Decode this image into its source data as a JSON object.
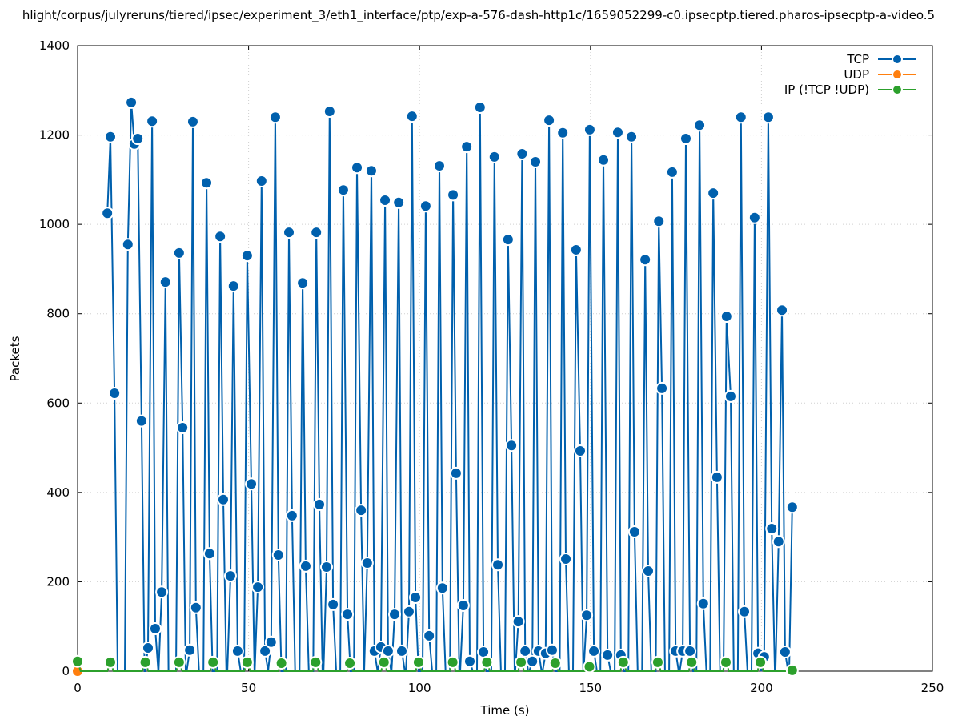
{
  "chart_data": {
    "type": "line",
    "title": "hlight/corpus/julyreruns/tiered/ipsec/experiment_3/eth1_interface/ptp/exp-a-576-dash-http1c/1659052299-c0.ipsecptp.tiered.pharos-ipsecptp-a-video.5",
    "xlabel": "Time (s)",
    "ylabel": "Packets",
    "xlim": [
      0,
      250
    ],
    "ylim": [
      0,
      1400
    ],
    "xticks": [
      0,
      50,
      100,
      150,
      200,
      250
    ],
    "yticks": [
      0,
      200,
      400,
      600,
      800,
      1000,
      1200,
      1400
    ],
    "grid": true,
    "legend_position": "top-right",
    "series": [
      {
        "name": "TCP",
        "color": "#0060ad",
        "x": [
          8.7,
          9.6,
          10.8,
          14.7,
          15.7,
          16.6,
          17.6,
          18.7,
          20.6,
          21.8,
          22.7,
          24.6,
          25.7,
          29.7,
          30.7,
          32.8,
          33.7,
          34.6,
          37.7,
          38.6,
          41.7,
          42.6,
          44.7,
          45.6,
          46.8,
          49.6,
          50.8,
          52.7,
          53.8,
          54.8,
          56.6,
          57.8,
          58.7,
          61.8,
          62.7,
          65.8,
          66.7,
          69.8,
          70.7,
          72.8,
          73.7,
          74.7,
          77.7,
          78.9,
          81.7,
          82.9,
          84.7,
          85.9,
          86.8,
          88.7,
          89.9,
          90.8,
          92.7,
          93.9,
          94.8,
          96.9,
          97.8,
          98.8,
          101.8,
          102.8,
          105.8,
          106.7,
          109.8,
          110.7,
          112.8,
          113.8,
          114.7,
          117.7,
          118.7,
          121.9,
          122.9,
          125.9,
          126.9,
          128.9,
          130.0,
          130.9,
          133.0,
          133.9,
          134.8,
          136.9,
          137.9,
          138.8,
          141.9,
          142.8,
          145.8,
          147.0,
          148.9,
          149.8,
          151.0,
          153.8,
          155.0,
          158.0,
          158.9,
          162.0,
          162.9,
          166.0,
          166.9,
          170.0,
          170.9,
          173.9,
          174.9,
          177.0,
          177.9,
          179.1,
          181.9,
          183.0,
          185.9,
          187.0,
          189.8,
          191.0,
          194.0,
          195.0,
          198.0,
          199.0,
          200.8,
          202.0,
          203.0,
          205.0,
          206.0,
          206.9,
          209.0
        ],
        "y": [
          1025,
          1196,
          622,
          955,
          1273,
          1180,
          1192,
          560,
          52,
          1231,
          95,
          177,
          871,
          936,
          545,
          47,
          1230,
          142,
          1093,
          263,
          973,
          384,
          213,
          862,
          45,
          930,
          419,
          188,
          1097,
          45,
          65,
          1240,
          260,
          982,
          348,
          869,
          235,
          982,
          373,
          233,
          1253,
          149,
          1077,
          127,
          1127,
          360,
          242,
          1120,
          45,
          54,
          1054,
          45,
          127,
          1049,
          45,
          133,
          1242,
          165,
          1041,
          79,
          1131,
          186,
          1066,
          443,
          147,
          1174,
          22,
          1262,
          43,
          1151,
          238,
          966,
          505,
          111,
          1158,
          45,
          22,
          1140,
          45,
          40,
          1233,
          47,
          1205,
          251,
          943,
          493,
          125,
          1212,
          45,
          1144,
          36,
          1206,
          36,
          1196,
          312,
          921,
          224,
          1007,
          633,
          1117,
          45,
          45,
          1192,
          45,
          1222,
          151,
          1070,
          434,
          794,
          615,
          1240,
          133,
          1015,
          40,
          32,
          1240,
          319,
          290,
          808,
          43,
          367
        ]
      },
      {
        "name": "UDP",
        "color": "#ff7f0e",
        "x": [
          0
        ],
        "y": [
          0
        ]
      },
      {
        "name": "IP (!TCP  !UDP)",
        "color": "#2ca02c",
        "x": [
          0,
          9.6,
          19.8,
          29.7,
          39.6,
          49.6,
          59.6,
          69.6,
          79.6,
          89.6,
          99.7,
          109.7,
          119.7,
          129.7,
          139.7,
          149.7,
          159.6,
          169.7,
          179.6,
          189.6,
          199.7,
          209
        ],
        "y": [
          22,
          20,
          20,
          20,
          20,
          20,
          18,
          20,
          18,
          20,
          20,
          20,
          20,
          20,
          18,
          10,
          20,
          20,
          20,
          20,
          20,
          2
        ]
      }
    ]
  }
}
